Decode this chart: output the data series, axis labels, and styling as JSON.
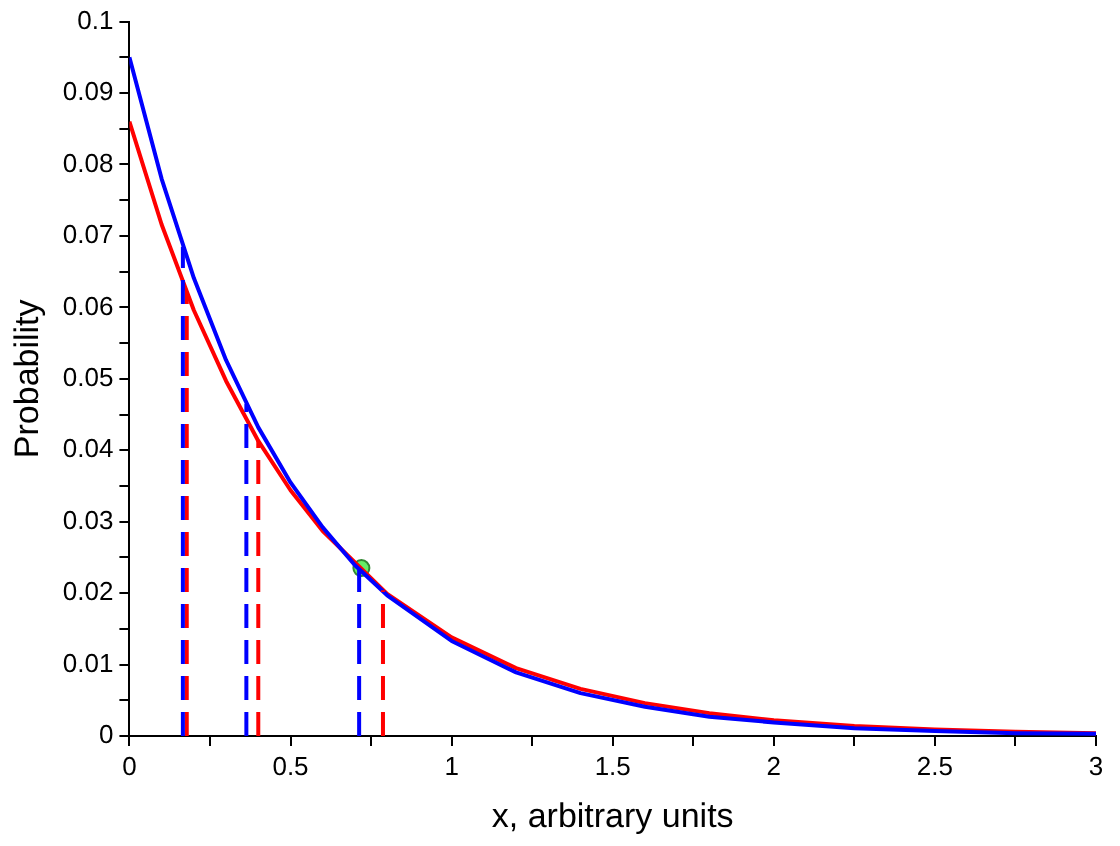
{
  "chart_data": {
    "type": "line",
    "xlabel": "x, arbitrary units",
    "ylabel": "Probability",
    "xlim": [
      0,
      3
    ],
    "ylim": [
      0,
      0.1
    ],
    "xticks": [
      0,
      {
        "value": 0.25,
        "label": null
      },
      0.5,
      {
        "value": 0.75,
        "label": null
      },
      1,
      {
        "value": 1.25,
        "label": null
      },
      1.5,
      {
        "value": 1.75,
        "label": null
      },
      2,
      {
        "value": 2.25,
        "label": null
      },
      2.5,
      {
        "value": 2.75,
        "label": null
      },
      3
    ],
    "yticks": [
      0,
      {
        "value": 0.005,
        "label": null
      },
      0.01,
      {
        "value": 0.015,
        "label": null
      },
      0.02,
      {
        "value": 0.025,
        "label": null
      },
      0.03,
      {
        "value": 0.035,
        "label": null
      },
      0.04,
      {
        "value": 0.045,
        "label": null
      },
      0.05,
      {
        "value": 0.055,
        "label": null
      },
      0.06,
      {
        "value": 0.065,
        "label": null
      },
      0.07,
      {
        "value": 0.075,
        "label": null
      },
      0.08,
      {
        "value": 0.085,
        "label": null
      },
      0.09,
      {
        "value": 0.095,
        "label": null
      },
      0.1
    ],
    "grid": false,
    "legend": false,
    "marker": "none",
    "series": [
      {
        "color": "#0000ff",
        "line_style": "dashed",
        "x": [
          0.166,
          0.166
        ],
        "values": [
          0,
          0.0685
        ]
      },
      {
        "color": "#0000ff",
        "line_style": "dashed",
        "x": [
          0.363,
          0.363
        ],
        "values": [
          0,
          0.0465
        ]
      },
      {
        "color": "#0000ff",
        "line_style": "dashed",
        "x": [
          0.713,
          0.713
        ],
        "values": [
          0,
          0.0233
        ]
      },
      {
        "color": "#ff0000",
        "line_style": "dashed",
        "x": [
          0.178,
          0.178
        ],
        "values": [
          0,
          0.0621
        ]
      },
      {
        "color": "#ff0000",
        "line_style": "dashed",
        "x": [
          0.4,
          0.4
        ],
        "values": [
          0,
          0.0413
        ]
      },
      {
        "color": "#ff0000",
        "line_style": "dashed",
        "x": [
          0.787,
          0.787
        ],
        "values": [
          0,
          0.0204
        ]
      },
      {
        "color": "#0000ff",
        "line_style": "solid",
        "x": [
          0,
          0.1,
          0.2,
          0.3,
          0.4,
          0.5,
          0.6,
          0.7,
          0.8,
          1,
          1.2,
          1.4,
          1.6,
          1.8,
          2,
          2.25,
          2.5,
          2.75,
          3
        ],
        "values": [
          0.095,
          0.078,
          0.0641,
          0.0526,
          0.0432,
          0.0355,
          0.0292,
          0.0239,
          0.0197,
          0.0133,
          0.0089,
          0.006,
          0.0041,
          0.0027,
          0.0019,
          0.0011,
          0.0007,
          0.0004,
          0.0003
        ]
      },
      {
        "color": "#ff0000",
        "line_style": "solid",
        "x": [
          0,
          0.1,
          0.2,
          0.3,
          0.4,
          0.5,
          0.6,
          0.8,
          1,
          1.2,
          1.4,
          1.6,
          1.8,
          2,
          2.25,
          2.5,
          2.75,
          3
        ],
        "values": [
          0.086,
          0.0716,
          0.0596,
          0.0497,
          0.0413,
          0.0344,
          0.0287,
          0.0199,
          0.0138,
          0.0095,
          0.0066,
          0.0046,
          0.0032,
          0.0022,
          0.0014,
          0.0009,
          0.0006,
          0.0004
        ]
      },
      {
        "type": "scatter",
        "color": "#66ee66",
        "marker": "circle",
        "x": [
          0.72
        ],
        "values": [
          0.0235
        ]
      }
    ]
  }
}
